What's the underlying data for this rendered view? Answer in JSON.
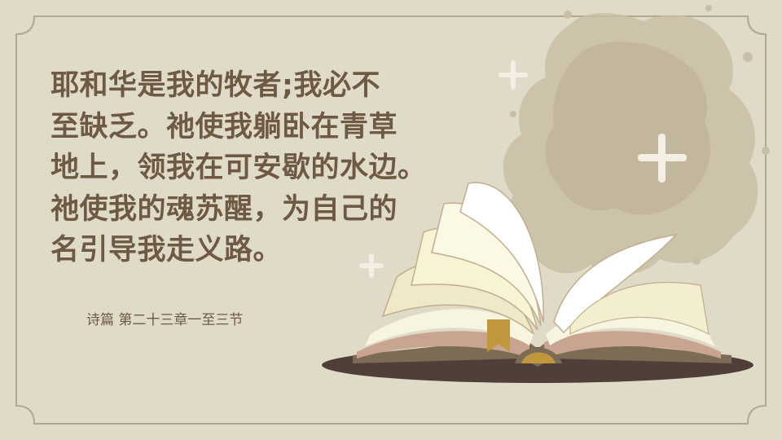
{
  "slide": {
    "verse_lines": [
      "耶和华是我的牧者;我必不",
      "至缺乏。祂使我躺卧在青草",
      "地上，领我在可安歇的水边。",
      "祂使我的魂苏醒，为自己的",
      "名引导我走义路。"
    ],
    "reference": "诗篇 第二十三章一至三节"
  },
  "colors": {
    "background": "#e0dac8",
    "frame": "#b3a88f",
    "text": "#6e5a44",
    "stain": "#c9bea6",
    "sparkle": "#f3efe4",
    "book_page": "#f7f5df",
    "book_edge": "#c9a591",
    "book_shadow": "#4f3f38",
    "bookmark": "#c1973d"
  },
  "icons": [
    "sparkle-icon",
    "open-book-illustration",
    "ink-stain-decoration"
  ]
}
